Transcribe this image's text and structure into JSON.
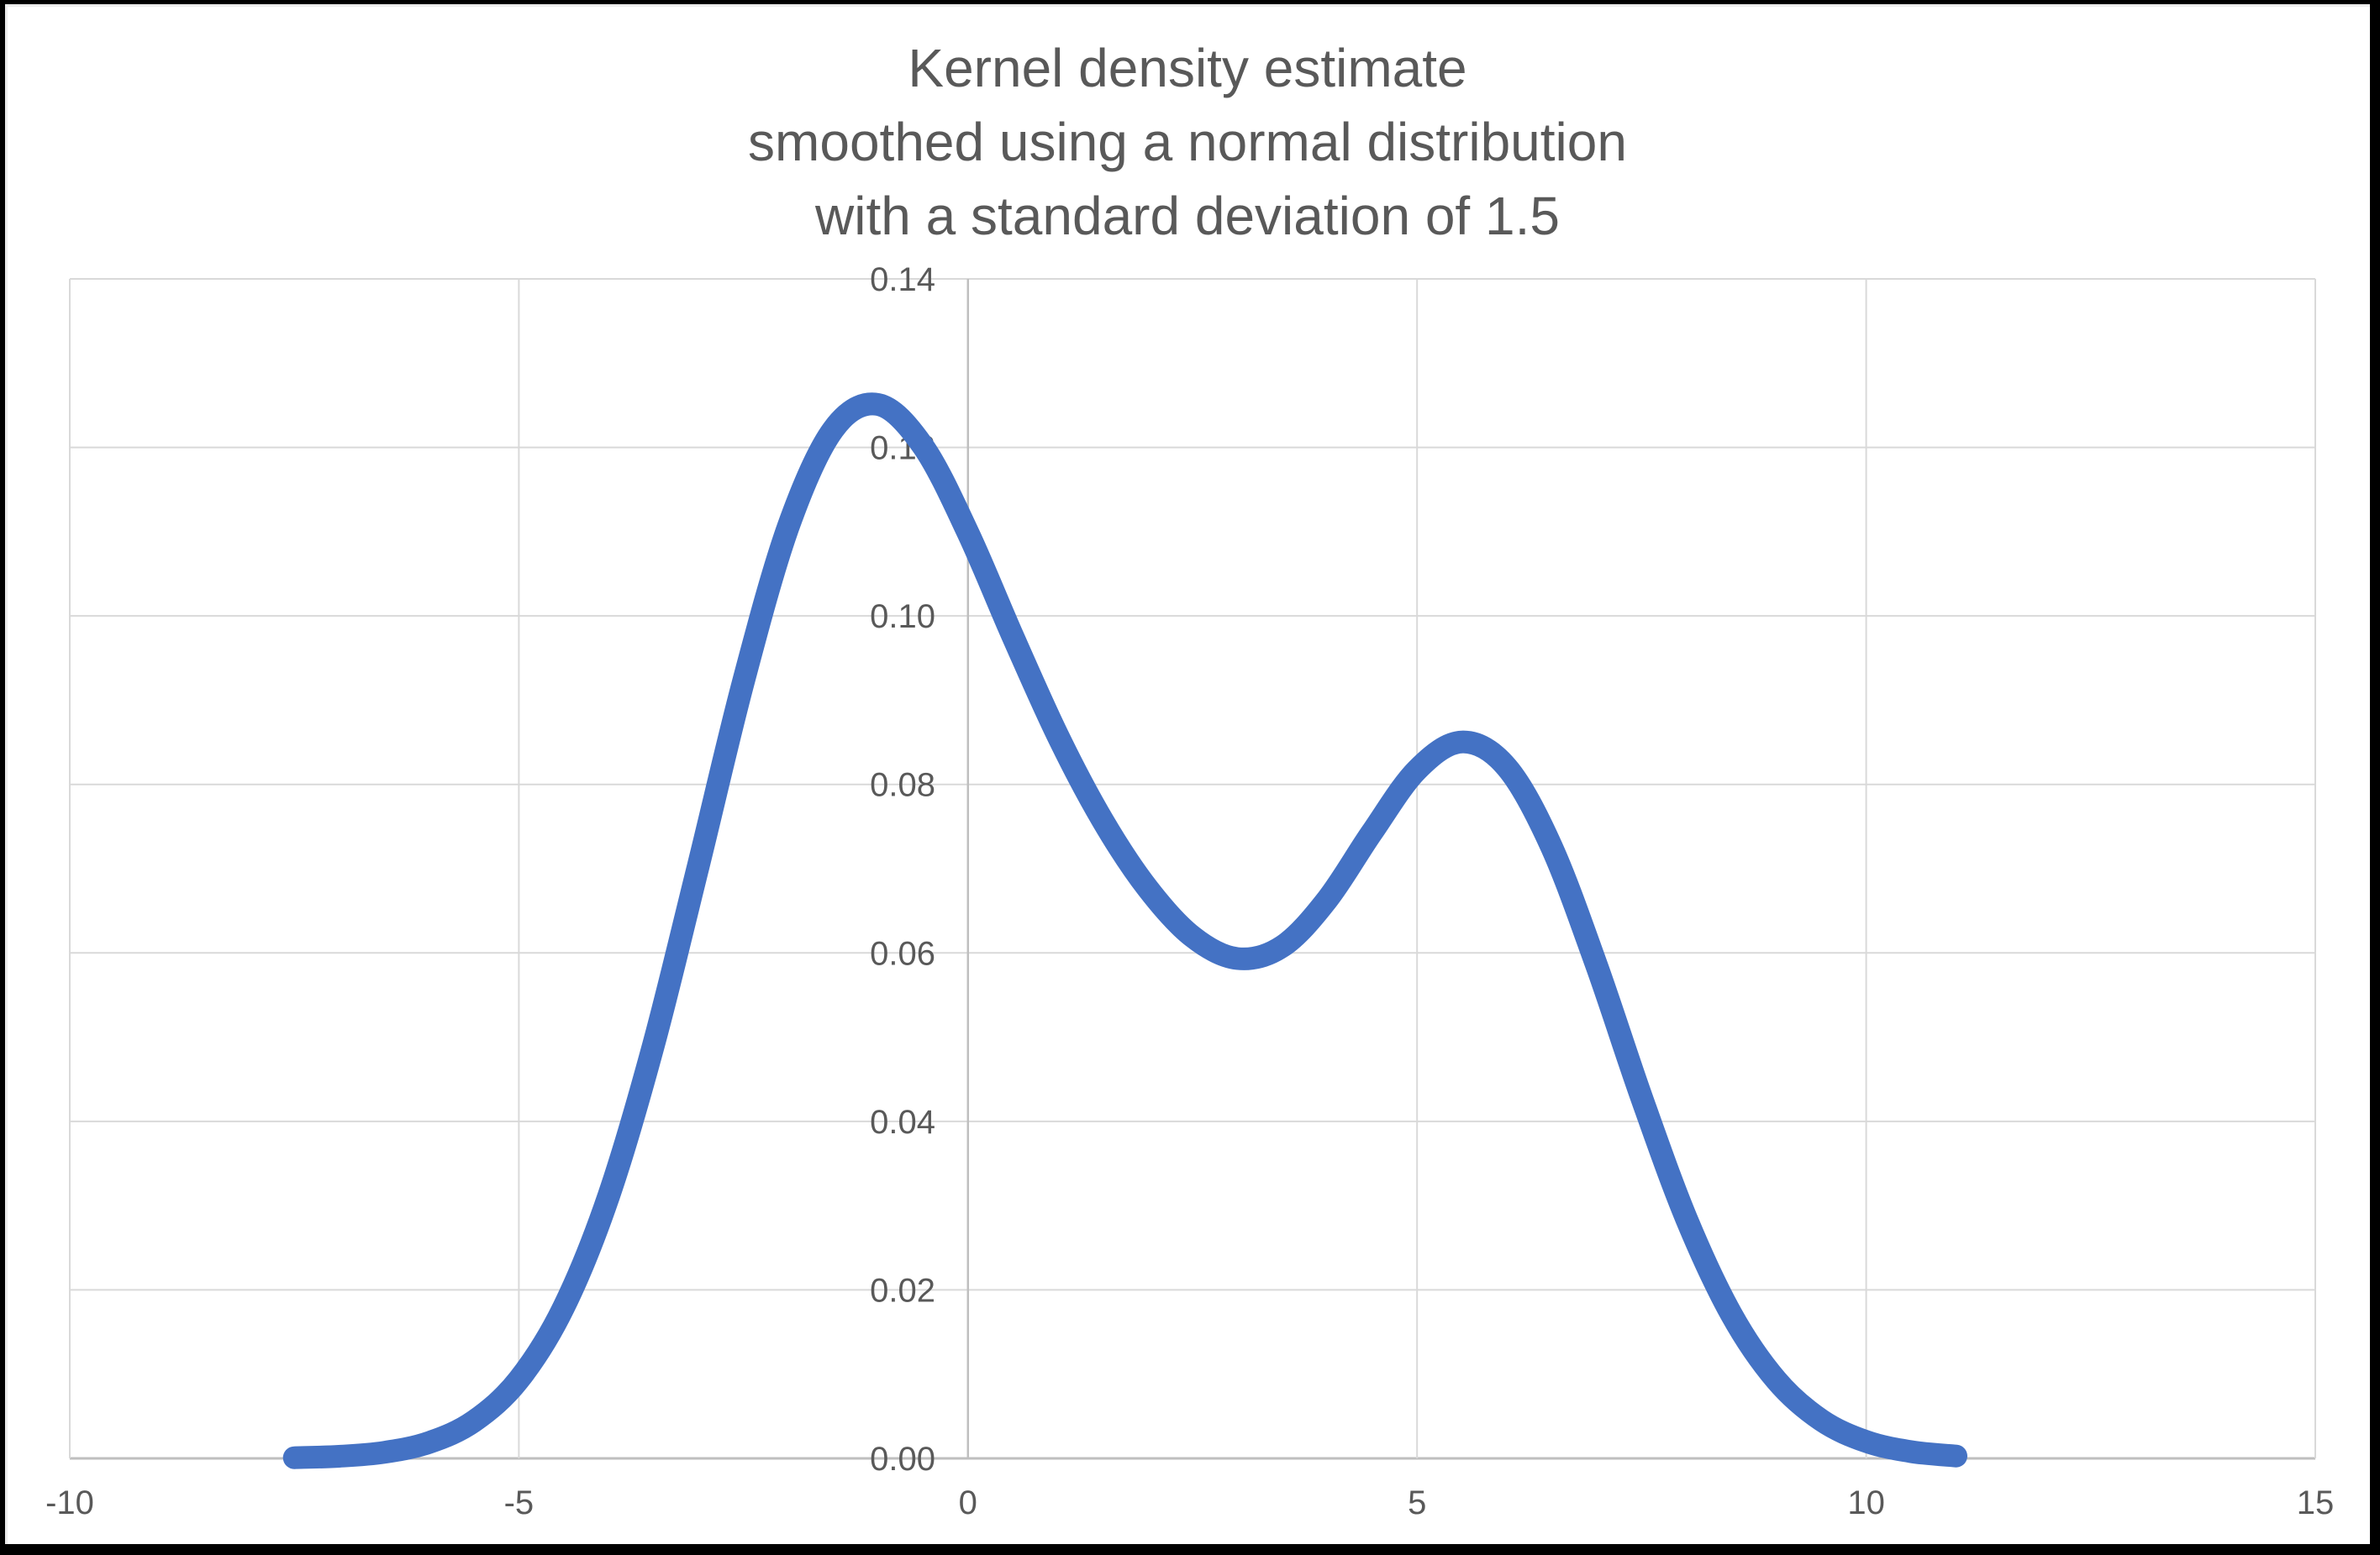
{
  "frame": {
    "background": "#ffffff",
    "border_color": "#000000"
  },
  "chart_data": {
    "type": "line",
    "title_lines": [
      "Kernel density estimate",
      "smoothed using a normal distribution",
      "with a standard deviation of 1.5"
    ],
    "smoothing": {
      "kernel": "normal distribution",
      "standard_deviation": 1.5
    },
    "xlim": [
      -10,
      15
    ],
    "ylim": [
      0,
      0.14
    ],
    "x_ticks": [
      -10,
      -5,
      0,
      5,
      10,
      15
    ],
    "y_ticks": [
      "0.00",
      "0.02",
      "0.04",
      "0.06",
      "0.08",
      "0.10",
      "0.12",
      "0.14"
    ],
    "y_tick_step": 0.02,
    "grid": true,
    "legend": "none",
    "colors": {
      "line": "#4472C4",
      "gridline": "#D9D9D9",
      "axis": "#BFBFBF",
      "tick_text": "#595959",
      "title_text": "#595959"
    },
    "series": [
      {
        "color": "#4472C4",
        "stroke_width": 27,
        "x_start": -7.5,
        "x_end": 11,
        "peak_1": {
          "x": -1.0,
          "y": 0.125
        },
        "valley": {
          "x": 3.0,
          "y": 0.0593
        },
        "peak_2": {
          "x": 5.5,
          "y": 0.085
        },
        "points": [
          [
            -7.5,
            8e-05
          ],
          [
            -7.0,
            0.00025
          ],
          [
            -6.5,
            0.00072
          ],
          [
            -6.0,
            0.00188
          ],
          [
            -5.5,
            0.00442
          ],
          [
            -5.0,
            0.00935
          ],
          [
            -4.5,
            0.01795
          ],
          [
            -4.0,
            0.03115
          ],
          [
            -3.5,
            0.0491
          ],
          [
            -3.0,
            0.07043
          ],
          [
            -2.5,
            0.0922
          ],
          [
            -2.0,
            0.11059
          ],
          [
            -1.5,
            0.12213
          ],
          [
            -1.0,
            0.12509
          ],
          [
            -0.5,
            0.12014
          ],
          [
            0.0,
            0.10988
          ],
          [
            0.5,
            0.09757
          ],
          [
            1.0,
            0.08578
          ],
          [
            1.5,
            0.07572
          ],
          [
            2.0,
            0.06767
          ],
          [
            2.5,
            0.06193
          ],
          [
            3.0,
            0.05933
          ],
          [
            3.5,
            0.06078
          ],
          [
            4.0,
            0.06633
          ],
          [
            4.5,
            0.07435
          ],
          [
            5.0,
            0.08173
          ],
          [
            5.5,
            0.08504
          ],
          [
            6.0,
            0.08202
          ],
          [
            6.5,
            0.07252
          ],
          [
            7.0,
            0.05846
          ],
          [
            7.5,
            0.04282
          ],
          [
            8.0,
            0.02843
          ],
          [
            8.5,
            0.01708
          ],
          [
            9.0,
            0.00928
          ],
          [
            9.5,
            0.00454
          ],
          [
            10.0,
            0.002
          ],
          [
            10.5,
            0.0008
          ],
          [
            11.0,
            0.00028
          ]
        ]
      }
    ]
  }
}
